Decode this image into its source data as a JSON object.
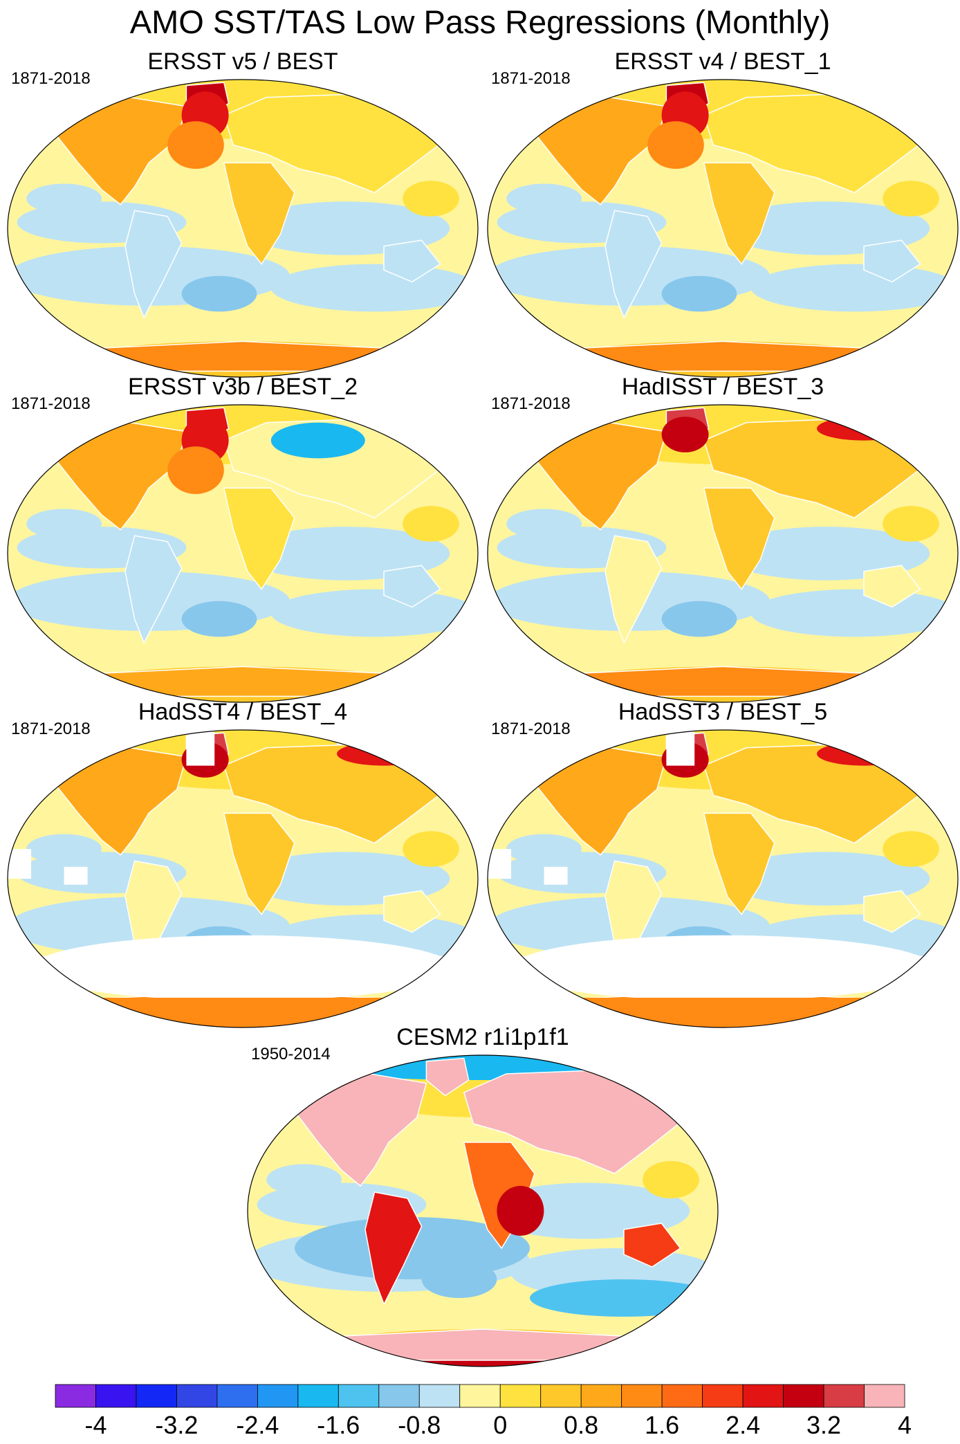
{
  "title": "AMO SST/TAS Low Pass Regressions (Monthly)",
  "panels": [
    {
      "title": "ERSST v5 / BEST",
      "period": "1871-2018",
      "pattern": "obs",
      "ocean_mask": false
    },
    {
      "title": "ERSST v4 / BEST_1",
      "period": "1871-2018",
      "pattern": "obs",
      "ocean_mask": false
    },
    {
      "title": "ERSST v3b / BEST_2",
      "period": "1871-2018",
      "pattern": "obs_v3b",
      "ocean_mask": false
    },
    {
      "title": "HadISST / BEST_3",
      "period": "1871-2018",
      "pattern": "obs_had",
      "ocean_mask": false
    },
    {
      "title": "HadSST4 / BEST_4",
      "period": "1871-2018",
      "pattern": "obs_had",
      "ocean_mask": true
    },
    {
      "title": "HadSST3 / BEST_5",
      "period": "1871-2018",
      "pattern": "obs_had",
      "ocean_mask": true
    },
    {
      "title": "CESM2 r1i1p1f1",
      "period": "1950-2014",
      "pattern": "model",
      "ocean_mask": false
    }
  ],
  "colorbar": {
    "levels": [
      -4,
      -3.6,
      -3.2,
      -2.8,
      -2.4,
      -2.0,
      -1.6,
      -1.2,
      -0.8,
      -0.4,
      0,
      0.4,
      0.8,
      1.2,
      1.6,
      2.0,
      2.4,
      2.8,
      3.2,
      3.6,
      4
    ],
    "labels": [
      "-4",
      "-3.2",
      "-2.4",
      "-1.6",
      "-0.8",
      "0",
      "0.8",
      "1.6",
      "2.4",
      "3.2",
      "4"
    ],
    "colors": [
      "#8a2be2",
      "#3a14f0",
      "#1428f5",
      "#3246e6",
      "#2e6ff0",
      "#2196f3",
      "#1ab8f0",
      "#4fc3f0",
      "#87c7ec",
      "#bde2f4",
      "#fff59d",
      "#ffe240",
      "#ffc82a",
      "#ffa91a",
      "#ff8a14",
      "#ff6a14",
      "#f53c14",
      "#e21414",
      "#c40010",
      "#d83c44",
      "#f8b4b8"
    ]
  }
}
